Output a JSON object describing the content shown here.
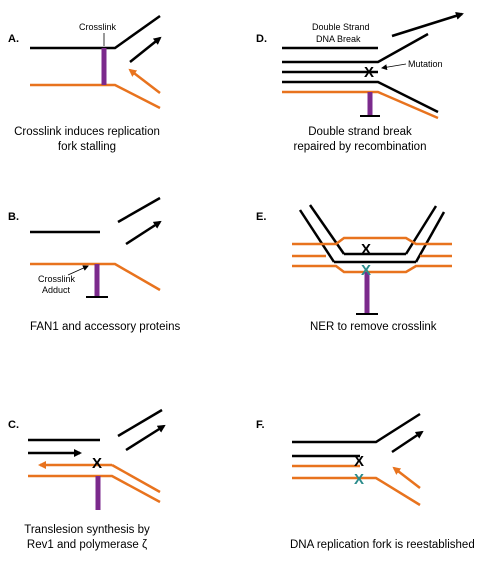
{
  "colors": {
    "black": "#000000",
    "orange": "#e8731e",
    "purple": "#7b2a8c",
    "teal": "#2a8c8c"
  },
  "panels": [
    {
      "letter": "A.",
      "caption": [
        "Crosslink induces replication",
        "fork stalling"
      ],
      "labels": [
        "Crosslink"
      ]
    },
    {
      "letter": "B.",
      "caption": [
        "FAN1 and accessory proteins"
      ],
      "labels": [
        "Crosslink",
        "Adduct"
      ]
    },
    {
      "letter": "C.",
      "caption": [
        "Translesion synthesis by",
        "Rev1 and polymerase ζ"
      ],
      "marks": [
        "X"
      ]
    },
    {
      "letter": "D.",
      "caption": [
        "Double strand break",
        "repaired by recombination"
      ],
      "labels": [
        "Double Strand",
        "DNA Break",
        "Mutation"
      ],
      "marks": [
        "X"
      ]
    },
    {
      "letter": "E.",
      "caption": [
        "NER to remove crosslink"
      ],
      "marks": [
        "X",
        "X"
      ]
    },
    {
      "letter": "F.",
      "caption": [
        "DNA replication fork is reestablished"
      ],
      "marks": [
        "X",
        "X"
      ]
    }
  ]
}
